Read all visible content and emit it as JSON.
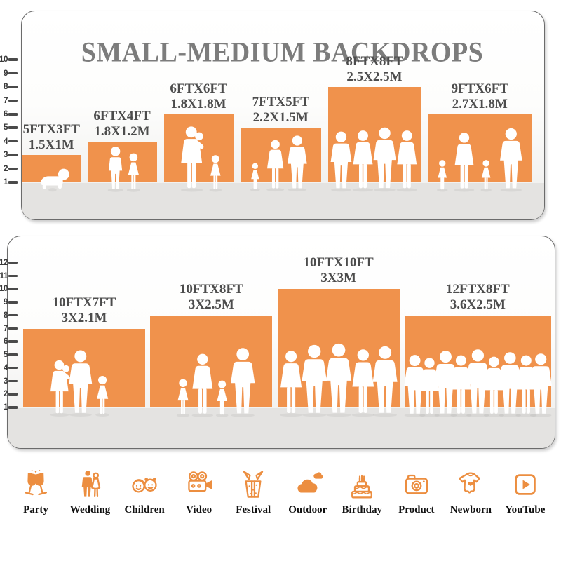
{
  "title": "SMALL-MEDIUM BACKDROPS",
  "colors": {
    "bar_orange": "#F0924C",
    "icon_orange": "#EC8E40",
    "title_gray": "#7C7C7C",
    "label_gray": "#4C4C4C",
    "tick_gray": "#3A3A3A",
    "floor_gray": "#E4E3E1"
  },
  "chart_data": [
    {
      "type": "bar",
      "panel": "small-medium backdrops (top)",
      "title": "SMALL-MEDIUM BACKDROPS",
      "categories": [
        "5FTX3FT",
        "6FTX4FT",
        "6FTX6FT",
        "7FTX5FT",
        "8FTX8FT",
        "9FTX6FT"
      ],
      "metric_labels": [
        "1.5X1M",
        "1.8X1.2M",
        "1.8X1.8M",
        "2.2X1.5M",
        "2.5X2.5M",
        "2.7X1.8M"
      ],
      "values": [
        3,
        4,
        6,
        5,
        8,
        6
      ],
      "bar_widths_ft": [
        5,
        6,
        6,
        7,
        8,
        9
      ],
      "yticks": [
        1,
        2,
        3,
        4,
        5,
        6,
        7,
        8,
        9,
        10
      ],
      "ylim": [
        0,
        10
      ],
      "xlabel": "",
      "ylabel": "",
      "legend": false,
      "grid": false,
      "bar_color": "#F0924C",
      "note": "white people silhouettes inside each bar for scale"
    },
    {
      "type": "bar",
      "panel": "large backdrops (bottom)",
      "title": "",
      "categories": [
        "10FTX7FT",
        "10FTX8FT",
        "10FTX10FT",
        "12FTX8FT"
      ],
      "metric_labels": [
        "3X2.1M",
        "3X2.5M",
        "3X3M",
        "3.6X2.5M"
      ],
      "values": [
        7,
        8,
        10,
        8
      ],
      "bar_widths_ft": [
        10,
        10,
        10,
        12
      ],
      "yticks": [
        1,
        2,
        3,
        4,
        5,
        6,
        7,
        8,
        9,
        10,
        11,
        12
      ],
      "ylim": [
        0,
        12
      ],
      "xlabel": "",
      "ylabel": "",
      "legend": false,
      "grid": false,
      "bar_color": "#F0924C",
      "note": "white people silhouettes inside each bar for scale"
    }
  ],
  "footer": {
    "items": [
      {
        "label": "Party",
        "icon": "party-icon"
      },
      {
        "label": "Wedding",
        "icon": "wedding-icon"
      },
      {
        "label": "Children",
        "icon": "children-icon"
      },
      {
        "label": "Video",
        "icon": "video-icon"
      },
      {
        "label": "Festival",
        "icon": "festival-icon"
      },
      {
        "label": "Outdoor",
        "icon": "outdoor-icon"
      },
      {
        "label": "Birthday",
        "icon": "birthday-icon"
      },
      {
        "label": "Product",
        "icon": "product-icon"
      },
      {
        "label": "Newborn",
        "icon": "newborn-icon"
      },
      {
        "label": "YouTube",
        "icon": "youtube-icon"
      }
    ]
  }
}
